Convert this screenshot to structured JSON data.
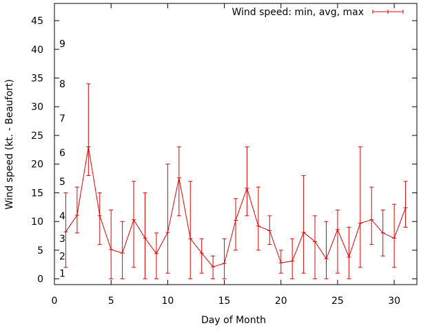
{
  "chart_data": {
    "type": "line",
    "xlabel": "Day of Month",
    "ylabel": "Wind speed (kt. - Beaufort)",
    "xlim": [
      0,
      32
    ],
    "ylim": [
      -1,
      48
    ],
    "xticks": [
      0,
      5,
      10,
      15,
      20,
      25,
      30
    ],
    "yticks": [
      0,
      5,
      10,
      15,
      20,
      25,
      30,
      35,
      40,
      45
    ],
    "legend_position": "top-right",
    "grid": false,
    "color": "#dd0000",
    "beaufort_labels": [
      {
        "label": "1",
        "y": 1
      },
      {
        "label": "2",
        "y": 4
      },
      {
        "label": "3",
        "y": 7
      },
      {
        "label": "4",
        "y": 11
      },
      {
        "label": "5",
        "y": 17
      },
      {
        "label": "6",
        "y": 22
      },
      {
        "label": "7",
        "y": 28
      },
      {
        "label": "8",
        "y": 34
      },
      {
        "label": "9",
        "y": 41
      }
    ],
    "series": [
      {
        "name": "Wind speed: min, avg, max",
        "x": [
          1,
          2,
          3,
          4,
          5,
          6,
          7,
          8,
          9,
          10,
          11,
          12,
          13,
          14,
          15,
          16,
          17,
          18,
          19,
          20,
          21,
          22,
          23,
          24,
          25,
          26,
          27,
          28,
          29,
          30,
          31
        ],
        "avg": [
          8.2,
          11.1,
          23.0,
          11.0,
          5.1,
          4.5,
          10.3,
          7.1,
          4.4,
          8.1,
          17.6,
          7.0,
          4.5,
          2.1,
          2.7,
          10.2,
          15.8,
          9.2,
          8.4,
          2.8,
          3.1,
          8.1,
          6.5,
          3.5,
          8.6,
          3.8,
          9.7,
          10.3,
          8.0,
          7.1,
          12.4
        ],
        "min": [
          2,
          8,
          18,
          6,
          0,
          0,
          2,
          0,
          0,
          1,
          11,
          0,
          1,
          0,
          0,
          5,
          11,
          5,
          6,
          1,
          0,
          1,
          0,
          0,
          1,
          0,
          2,
          6,
          4,
          2,
          9
        ],
        "max": [
          15,
          16,
          34,
          15,
          12,
          10,
          17,
          15,
          8,
          20,
          23,
          17,
          7,
          4,
          7,
          14,
          23,
          16,
          11,
          5,
          7,
          18,
          11,
          10,
          12,
          9,
          23,
          16,
          12,
          13,
          17
        ]
      }
    ]
  }
}
